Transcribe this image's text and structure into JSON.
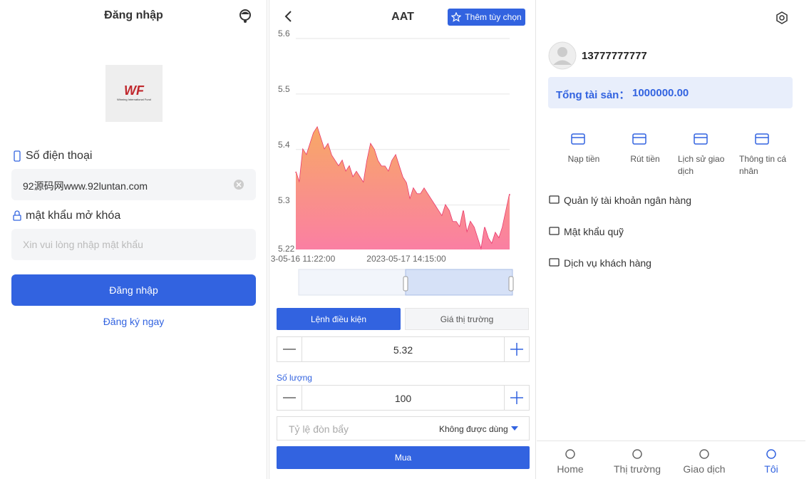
{
  "login": {
    "title": "Đăng nhập",
    "logo_text": "WF",
    "logo_caption": "Winning International Fund",
    "phone_label": "Số điện thoại",
    "phone_value": "92源码网www.92luntan.com",
    "password_label": "mật khẩu mở khóa",
    "password_placeholder": "Xin vui lòng nhập mật khẩu",
    "submit": "Đăng nhập",
    "register": "Đăng ký ngay"
  },
  "trade": {
    "title": "AAT",
    "add_button": "Thêm tùy chọn",
    "tabs": [
      "Lệnh điều kiện",
      "Giá thị trường"
    ],
    "price": "5.32",
    "quantity_label": "Số lượng",
    "quantity": "100",
    "leverage_label": "Tỷ lệ đòn bẩy",
    "leverage_value": "Không được dùng",
    "buy": "Mua"
  },
  "chart_data": {
    "type": "area",
    "categories": [
      null,
      null,
      "3-05-16 11:22:00",
      null,
      null,
      null,
      null,
      null,
      null,
      null,
      null,
      null,
      null,
      null,
      null,
      null,
      null,
      null,
      null,
      null,
      null,
      null,
      null,
      null,
      null,
      null,
      null,
      null,
      null,
      null,
      null,
      "2023-05-17 14:15:00",
      null,
      null,
      null,
      null,
      null,
      null,
      null,
      null,
      null,
      null,
      null,
      null,
      null,
      null,
      null,
      null,
      null,
      null,
      null,
      null,
      null,
      null,
      null,
      null,
      null,
      null,
      null,
      null,
      null
    ],
    "values": [
      5.36,
      5.34,
      5.4,
      5.39,
      5.41,
      5.43,
      5.44,
      5.42,
      5.4,
      5.41,
      5.39,
      5.38,
      5.37,
      5.38,
      5.36,
      5.37,
      5.35,
      5.36,
      5.35,
      5.34,
      5.38,
      5.41,
      5.4,
      5.38,
      5.37,
      5.37,
      5.36,
      5.38,
      5.39,
      5.37,
      5.35,
      5.34,
      5.31,
      5.33,
      5.32,
      5.32,
      5.33,
      5.32,
      5.31,
      5.3,
      5.29,
      5.28,
      5.3,
      5.29,
      5.27,
      5.27,
      5.26,
      5.29,
      5.25,
      5.27,
      5.26,
      5.24,
      5.22,
      5.26,
      5.24,
      5.23,
      5.25,
      5.24,
      5.26,
      5.29,
      5.32
    ],
    "color": "#e8336a",
    "ylim": [
      5.22,
      5.6
    ],
    "yticks": [
      5.22,
      5.3,
      5.4,
      5.5,
      5.6
    ],
    "grid": true
  },
  "profile": {
    "phone": "13777777777",
    "assets_label": "Tổng tài sản：",
    "assets_value": "1000000.00",
    "actions": [
      "Nạp tiền",
      "Rút tiền",
      "Lịch sử giao dịch",
      "Thông tin cá nhân"
    ],
    "menu": [
      "Quản lý tài khoản ngân hàng",
      "Mật khẩu quỹ",
      "Dịch vụ khách hàng"
    ],
    "tabs": [
      "Home",
      "Thị trường",
      "Giao dịch",
      "Tôi"
    ]
  }
}
